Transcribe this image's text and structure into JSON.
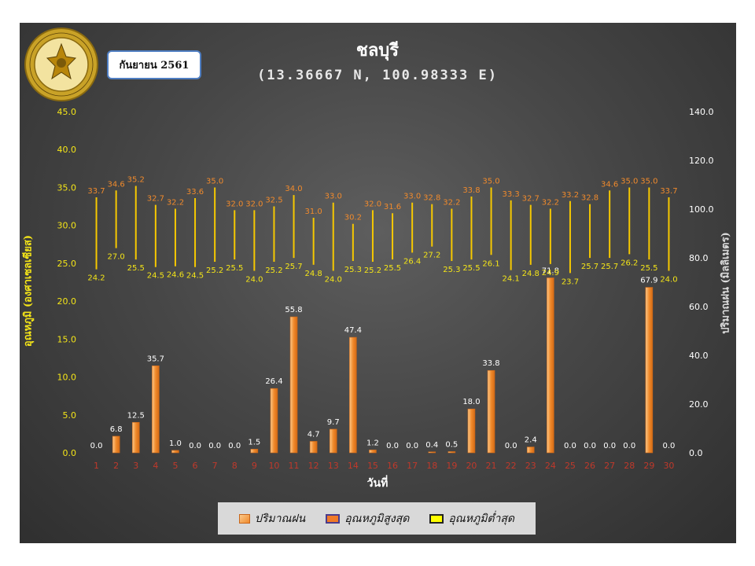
{
  "header": {
    "title": "ชลบุรี",
    "subtitle": "(13.36667 N, 100.98333 E)",
    "month_label": "กันยายน 2561",
    "logo_text": "กรมอุตุนิยมวิทยา METEOROLOGICAL DEPARTMENT"
  },
  "legend": {
    "rain": "ปริมาณฝน",
    "tmax": "อุณหภูมิสูงสุด",
    "tmin": "อุณหภูมิต่ำสุด"
  },
  "colors": {
    "rain_bar": "#f08a2c",
    "rain_bar_light": "#fbc98a",
    "tmax_label": "#f08a2c",
    "tmin_label": "#f4e518",
    "range_line": "#f6c800",
    "x_tick": "#c0392b",
    "left_axis": "#f4e518",
    "right_axis": "#ffffff"
  },
  "chart_data": {
    "type": "bar",
    "xlabel": "วันที่",
    "ylabel_left": "อุณหภูมิ (องศาเซลเซียส)",
    "ylabel_right": "ปริมาณฝน (มิลลิเมตร)",
    "categories": [
      "1",
      "2",
      "3",
      "4",
      "5",
      "6",
      "7",
      "8",
      "9",
      "10",
      "11",
      "12",
      "13",
      "14",
      "15",
      "16",
      "17",
      "18",
      "19",
      "20",
      "21",
      "22",
      "23",
      "24",
      "25",
      "26",
      "27",
      "28",
      "29",
      "30"
    ],
    "ylim_left": [
      0,
      45
    ],
    "yticks_left": [
      "0.0",
      "5.0",
      "10.0",
      "15.0",
      "20.0",
      "25.0",
      "30.0",
      "35.0",
      "40.0",
      "45.0"
    ],
    "ylim_right": [
      0,
      140
    ],
    "yticks_right": [
      "0.0",
      "20.0",
      "40.0",
      "60.0",
      "80.0",
      "100.0",
      "120.0",
      "140.0"
    ],
    "series": [
      {
        "name": "ปริมาณฝน",
        "axis": "right",
        "kind": "bar",
        "values": [
          0.0,
          6.8,
          12.5,
          35.7,
          1.0,
          0.0,
          0.0,
          0.0,
          1.5,
          26.4,
          55.8,
          4.7,
          9.7,
          47.4,
          1.2,
          0.0,
          0.0,
          0.4,
          0.5,
          18.0,
          33.8,
          0.0,
          2.4,
          71.8,
          0.0,
          0.0,
          0.0,
          0.0,
          67.9,
          0.0
        ],
        "labels": [
          "0.0",
          "6.8",
          "12.5",
          "35.7",
          "1.0",
          "0.0",
          "0.0",
          "0.0",
          "1.5",
          "26.4",
          "55.8",
          "4.7",
          "9.7",
          "47.4",
          "1.2",
          "0.0",
          "0.0",
          "0.4",
          "0.5",
          "18.0",
          "33.8",
          "0.0",
          "2.4",
          "71.8",
          "0.0",
          "0.0",
          "0.0",
          "0.0",
          "67.9",
          "0.0"
        ]
      },
      {
        "name": "อุณหภูมิสูงสุด",
        "axis": "left",
        "kind": "range-top",
        "values": [
          33.7,
          34.6,
          35.2,
          32.7,
          32.2,
          33.6,
          35.0,
          32.0,
          32.0,
          32.5,
          34.0,
          31.0,
          33.0,
          30.2,
          32.0,
          31.6,
          33.0,
          32.8,
          32.2,
          33.8,
          35.0,
          33.3,
          32.7,
          32.2,
          33.2,
          32.8,
          34.6,
          35.0,
          35.0,
          33.7
        ],
        "labels": [
          "33.7",
          "34.6",
          "35.2",
          "32.7",
          "32.2",
          "33.6",
          "35.0",
          "32.0",
          "32.0",
          "32.5",
          "34.0",
          "31.0",
          "33.0",
          "30.2",
          "32.0",
          "31.6",
          "33.0",
          "32.8",
          "32.2",
          "33.8",
          "35.0",
          "33.3",
          "32.7",
          "32.2",
          "33.2",
          "32.8",
          "34.6",
          "35.0",
          "35.0",
          "33.7"
        ]
      },
      {
        "name": "อุณหภูมิต่ำสุด",
        "axis": "left",
        "kind": "range-bottom",
        "values": [
          24.2,
          27.0,
          25.5,
          24.5,
          24.6,
          24.5,
          25.2,
          25.5,
          24.0,
          25.2,
          25.7,
          24.8,
          24.0,
          25.3,
          25.2,
          25.5,
          26.4,
          27.2,
          25.3,
          25.5,
          26.1,
          24.1,
          24.8,
          24.9,
          23.7,
          25.7,
          25.7,
          26.2,
          25.5,
          24.0
        ],
        "labels": [
          "24.2",
          "27.0",
          "25.5",
          "24.5",
          "24.6",
          "24.5",
          "25.2",
          "25.5",
          "24.0",
          "25.2",
          "25.7",
          "24.8",
          "24.0",
          "25.3",
          "25.2",
          "25.5",
          "26.4",
          "27.2",
          "25.3",
          "25.5",
          "26.1",
          "24.1",
          "24.8",
          "24.9",
          "23.7",
          "25.7",
          "25.7",
          "26.2",
          "25.5",
          "24.0"
        ]
      }
    ],
    "grid": false,
    "legend_position": "bottom"
  }
}
